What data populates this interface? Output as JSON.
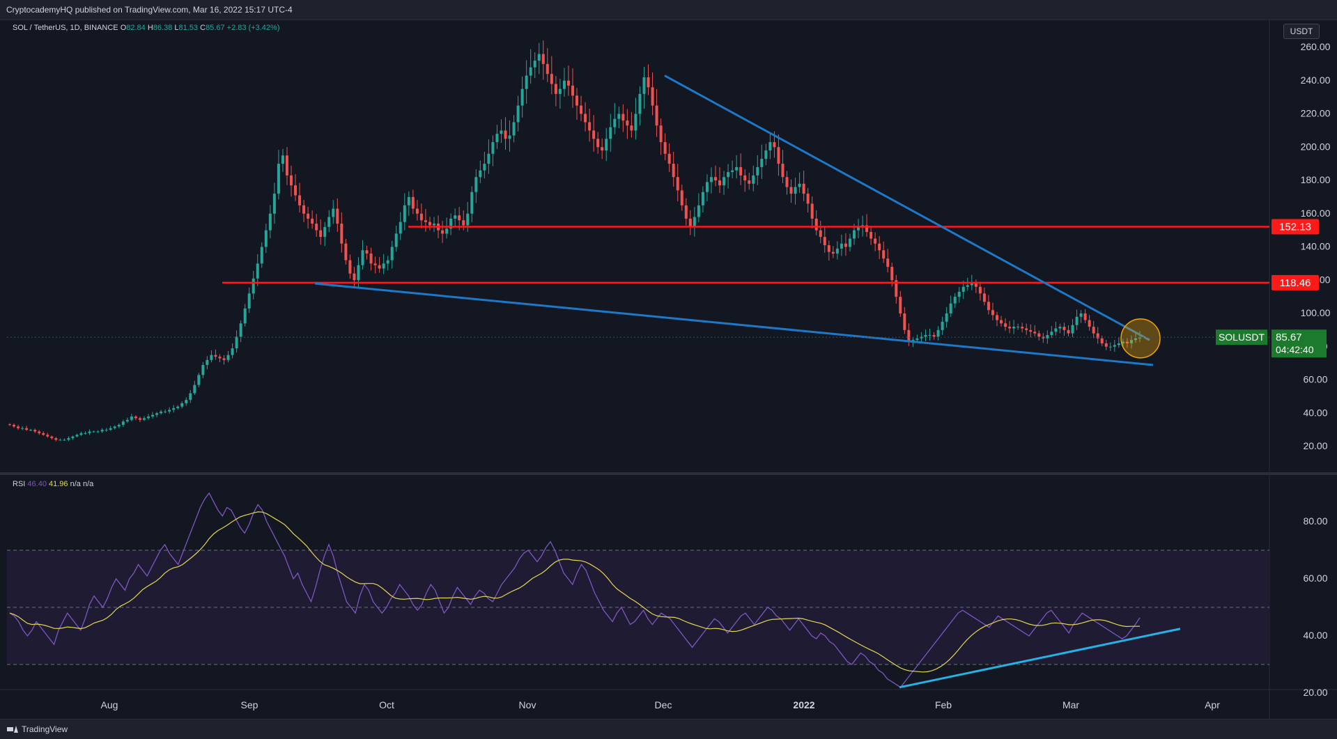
{
  "header": {
    "publish_info": "CryptocademyHQ published on TradingView.com, Mar 16, 2022 15:17 UTC-4"
  },
  "footer": {
    "brand": "TradingView"
  },
  "price_scale": {
    "currency": "USDT"
  },
  "legend": {
    "symbol": "SOL / TetherUS, 1D, BINANCE",
    "ohlc": [
      {
        "k": "O",
        "v": "82.84"
      },
      {
        "k": "H",
        "v": "86.38"
      },
      {
        "k": "L",
        "v": "81.53"
      },
      {
        "k": "C",
        "v": "85.67"
      }
    ],
    "change": "+2.83 (+3.42%)"
  },
  "rsi_legend": {
    "name": "RSI",
    "value": "46.40",
    "ma_value": "41.96",
    "na1": "n/a",
    "na2": "n/a"
  },
  "colors": {
    "background": "#131722",
    "up": "#26a69a",
    "down": "#ef5350",
    "trend_line": "#1e78c8",
    "support_resistance": "#ff1a1a",
    "rsi_line": "#7e57c2",
    "rsi_ma": "#e5d84f",
    "rsi_band": "#1e1b33",
    "rsi_trend": "#26b2e5",
    "highlight_circle": "#f0a500",
    "last_price_tag": "#1b7a2b"
  },
  "chart_data": [
    {
      "type": "candlestick",
      "symbol": "SOLUSDT",
      "x_ticks": [
        "Aug",
        "Sep",
        "Oct",
        "Nov",
        "Dec",
        "2022",
        "Feb",
        "Mar",
        "Apr"
      ],
      "y_ticks": [
        "260.00",
        "240.00",
        "220.00",
        "200.00",
        "180.00",
        "160.00",
        "140.00",
        "120.00",
        "100.00",
        "80.00",
        "60.00",
        "40.00",
        "20.00"
      ],
      "ylim": [
        0,
        270
      ],
      "closes": [
        33,
        32,
        31,
        31,
        30,
        30,
        29,
        28,
        27,
        26,
        25,
        24,
        24,
        24,
        25,
        26,
        27,
        28,
        28,
        29,
        29,
        29,
        30,
        30,
        31,
        32,
        33,
        35,
        36,
        38,
        37,
        36,
        37,
        38,
        39,
        40,
        41,
        41,
        42,
        43,
        44,
        46,
        48,
        52,
        57,
        63,
        69,
        72,
        75,
        74,
        73,
        72,
        75,
        79,
        86,
        94,
        103,
        112,
        121,
        130,
        140,
        150,
        160,
        172,
        190,
        195,
        183,
        177,
        171,
        165,
        160,
        157,
        154,
        150,
        146,
        152,
        158,
        163,
        154,
        142,
        132,
        124,
        120,
        129,
        138,
        136,
        130,
        129,
        127,
        130,
        132,
        140,
        148,
        155,
        165,
        170,
        163,
        160,
        156,
        155,
        153,
        154,
        150,
        148,
        151,
        157,
        159,
        156,
        153,
        160,
        173,
        182,
        186,
        190,
        196,
        203,
        208,
        210,
        205,
        207,
        215,
        225,
        235,
        243,
        248,
        252,
        256,
        250,
        244,
        238,
        232,
        235,
        240,
        237,
        231,
        225,
        220,
        215,
        210,
        205,
        200,
        198,
        205,
        212,
        217,
        220,
        216,
        213,
        210,
        220,
        232,
        242,
        236,
        225,
        213,
        203,
        196,
        190,
        182,
        174,
        165,
        157,
        152,
        158,
        165,
        173,
        179,
        182,
        180,
        177,
        182,
        185,
        186,
        188,
        183,
        180,
        178,
        183,
        188,
        193,
        198,
        203,
        200,
        190,
        182,
        176,
        172,
        176,
        178,
        172,
        166,
        157,
        150,
        146,
        141,
        137,
        136,
        139,
        142,
        140,
        145,
        150,
        152,
        153,
        149,
        145,
        142,
        138,
        133,
        128,
        120,
        110,
        100,
        90,
        83,
        84,
        85,
        86,
        87,
        87,
        86,
        90,
        95,
        100,
        106,
        110,
        113,
        116,
        117,
        118,
        116,
        112,
        107,
        102,
        99,
        96,
        94,
        92,
        91,
        92,
        92,
        91,
        90,
        89,
        88,
        86,
        85,
        87,
        89,
        91,
        92,
        90,
        88,
        93,
        98,
        100,
        96,
        92,
        88,
        85,
        82,
        80,
        80,
        81,
        82,
        83,
        82,
        84,
        85,
        85.67
      ],
      "support_resistance": [
        152.13,
        118.46
      ],
      "last_price": {
        "label": "SOLUSDT",
        "value": "85.67",
        "countdown": "04:42:40"
      }
    },
    {
      "type": "line",
      "name": "RSI",
      "y_ticks": [
        "80.00",
        "60.00",
        "40.00",
        "20.00"
      ],
      "ylim": [
        14,
        94
      ],
      "bands": [
        70,
        50,
        30
      ],
      "values": [
        48,
        47,
        45,
        42,
        40,
        42,
        45,
        43,
        41,
        39,
        37,
        42,
        45,
        48,
        46,
        44,
        42,
        46,
        51,
        54,
        52,
        50,
        53,
        57,
        60,
        58,
        56,
        60,
        62,
        65,
        63,
        61,
        64,
        67,
        70,
        72,
        69,
        67,
        65,
        69,
        73,
        77,
        81,
        85,
        88,
        90,
        87,
        84,
        82,
        85,
        84,
        81,
        78,
        76,
        79,
        83,
        86,
        84,
        80,
        77,
        74,
        71,
        68,
        64,
        60,
        62,
        58,
        55,
        52,
        57,
        63,
        68,
        72,
        68,
        62,
        57,
        52,
        50,
        48,
        54,
        58,
        56,
        52,
        50,
        48,
        50,
        53,
        55,
        58,
        56,
        54,
        51,
        49,
        51,
        55,
        58,
        56,
        52,
        48,
        50,
        54,
        57,
        55,
        53,
        51,
        54,
        56,
        55,
        53,
        52,
        55,
        58,
        60,
        62,
        64,
        67,
        69,
        70,
        68,
        66,
        68,
        71,
        73,
        70,
        66,
        62,
        60,
        58,
        62,
        65,
        63,
        59,
        55,
        52,
        49,
        47,
        45,
        48,
        50,
        47,
        44,
        45,
        47,
        49,
        46,
        44,
        46,
        48,
        47,
        46,
        44,
        42,
        40,
        38,
        36,
        38,
        40,
        42,
        44,
        46,
        45,
        43,
        41,
        43,
        45,
        47,
        48,
        46,
        44,
        46,
        48,
        50,
        49,
        47,
        46,
        44,
        42,
        44,
        46,
        44,
        42,
        40,
        39,
        41,
        40,
        38,
        37,
        35,
        33,
        31,
        30,
        32,
        34,
        33,
        31,
        30,
        28,
        27,
        25,
        24,
        23,
        22,
        24,
        26,
        28,
        30,
        32,
        34,
        36,
        38,
        40,
        42,
        44,
        46,
        48,
        49,
        48,
        47,
        46,
        45,
        44,
        43,
        45,
        47,
        46,
        45,
        44,
        43,
        42,
        41,
        40,
        42,
        44,
        46,
        48,
        49,
        47,
        45,
        43,
        41,
        44,
        46,
        48,
        47,
        46,
        45,
        44,
        43,
        42,
        41,
        40,
        39,
        40,
        42,
        44,
        46.4
      ]
    }
  ]
}
